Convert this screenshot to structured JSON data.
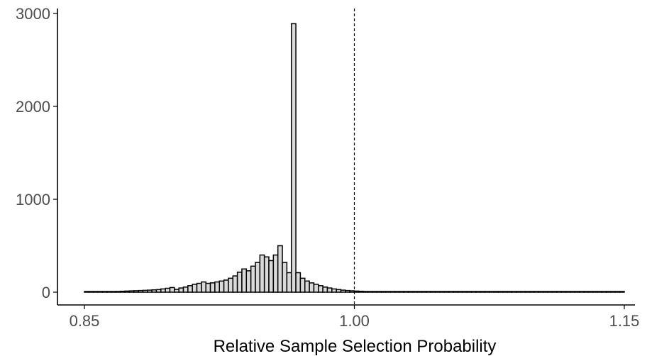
{
  "chart_data": {
    "type": "bar",
    "title": "",
    "xlabel": "Relative Sample Selection Probability",
    "ylabel": "",
    "xlim": [
      0.838,
      1.162
    ],
    "ylim": [
      -140,
      3000
    ],
    "x_ticks": [
      {
        "value": 0.85,
        "label": "0.85"
      },
      {
        "value": 1.0,
        "label": "1.00"
      },
      {
        "value": 1.15,
        "label": "1.15"
      }
    ],
    "y_ticks": [
      {
        "value": 0,
        "label": "0"
      },
      {
        "value": 1000,
        "label": "1000"
      },
      {
        "value": 2000,
        "label": "2000"
      },
      {
        "value": 3000,
        "label": "3000"
      }
    ],
    "bin_start": 0.85,
    "bin_width": 0.0025,
    "reference_line": {
      "x": 1.0,
      "style": "dashed"
    },
    "bar_fill": "#d9d9d9",
    "bar_stroke": "#000000",
    "values": [
      2,
      3,
      3,
      4,
      5,
      6,
      7,
      8,
      10,
      12,
      14,
      16,
      18,
      20,
      22,
      25,
      28,
      35,
      42,
      50,
      30,
      45,
      55,
      70,
      85,
      95,
      110,
      95,
      100,
      110,
      120,
      130,
      150,
      175,
      215,
      250,
      230,
      280,
      320,
      400,
      380,
      340,
      400,
      500,
      320,
      210,
      2890,
      210,
      150,
      120,
      100,
      85,
      70,
      55,
      45,
      35,
      28,
      22,
      18,
      15,
      12,
      10,
      8,
      7,
      6,
      6,
      5,
      5,
      4,
      4,
      4,
      3,
      3,
      3,
      3,
      3,
      3,
      2,
      2,
      2,
      2,
      2,
      2,
      2,
      2,
      2,
      2,
      2,
      2,
      2,
      2,
      2,
      2,
      2,
      2,
      2,
      2,
      2,
      2,
      2,
      2,
      2,
      2,
      2,
      2,
      2,
      2,
      2,
      2,
      2,
      2,
      2,
      2,
      2,
      2,
      2,
      2,
      2,
      2,
      2
    ]
  }
}
